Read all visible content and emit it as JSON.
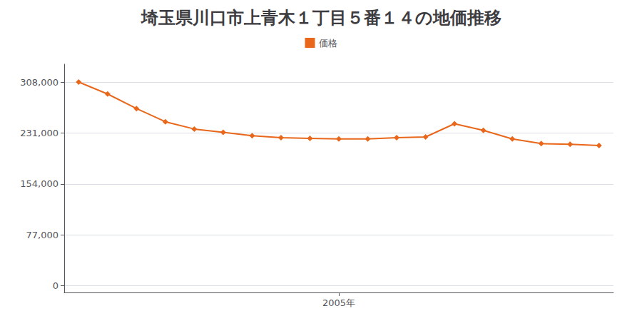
{
  "chart_data": {
    "type": "line",
    "title": "埼玉県川口市上青木１丁目５番１４の地価推移",
    "x": [
      1996,
      1997,
      1998,
      1999,
      2000,
      2001,
      2002,
      2003,
      2004,
      2005,
      2006,
      2007,
      2008,
      2009,
      2010,
      2011,
      2012,
      2013,
      2014
    ],
    "series": [
      {
        "name": "価格",
        "color": "#e8671b",
        "marker": "diamond",
        "values": [
          308000,
          290000,
          268000,
          248000,
          237000,
          232000,
          227000,
          224000,
          223000,
          222000,
          222000,
          224000,
          225000,
          245000,
          235000,
          222000,
          215000,
          214000,
          212000
        ]
      }
    ],
    "xlim": [
      1995.5,
      2014.5
    ],
    "xticks": [
      {
        "value": 2005,
        "label": "2005年"
      }
    ],
    "ylim": [
      -10000,
      335000
    ],
    "yticks": [
      0,
      {
        "value": 77000,
        "label": "77,000"
      },
      {
        "value": 154000,
        "label": "154,000"
      },
      {
        "value": 231000,
        "label": "231,000"
      },
      {
        "value": 308000,
        "label": "308,000"
      }
    ],
    "grid": "y",
    "legend": "top"
  }
}
